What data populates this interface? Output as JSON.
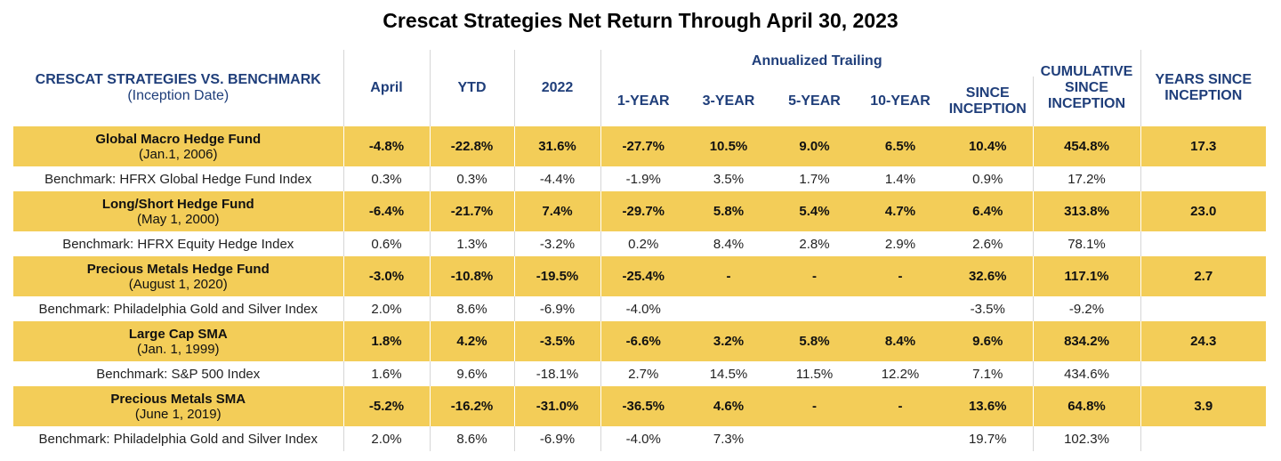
{
  "title": "Crescat Strategies Net Return Through April 30, 2023",
  "header": {
    "strategy_label": "CRESCAT STRATEGIES VS. BENCHMARK",
    "strategy_sublabel": "(Inception Date)",
    "april": "April",
    "ytd": "YTD",
    "y2022": "2022",
    "annualized_trailing": "Annualized Trailing",
    "one_year": "1-YEAR",
    "three_year": "3-YEAR",
    "five_year": "5-YEAR",
    "ten_year": "10-YEAR",
    "since_inception": "SINCE INCEPTION",
    "cumulative_since_inception": "CUMULATIVE SINCE INCEPTION",
    "years_since_inception": "YEARS SINCE INCEPTION"
  },
  "rows": [
    {
      "kind": "fund",
      "name": "Global Macro Hedge Fund",
      "date": "(Jan.1, 2006)",
      "cells": [
        "-4.8%",
        "-22.8%",
        "31.6%",
        "-27.7%",
        "10.5%",
        "9.0%",
        "6.5%",
        "10.4%",
        "454.8%",
        "17.3"
      ]
    },
    {
      "kind": "bench",
      "name": "Benchmark: HFRX Global Hedge Fund Index",
      "cells": [
        "0.3%",
        "0.3%",
        "-4.4%",
        "-1.9%",
        "3.5%",
        "1.7%",
        "1.4%",
        "0.9%",
        "17.2%",
        ""
      ]
    },
    {
      "kind": "fund",
      "name": "Long/Short Hedge Fund",
      "date": "(May 1, 2000)",
      "cells": [
        "-6.4%",
        "-21.7%",
        "7.4%",
        "-29.7%",
        "5.8%",
        "5.4%",
        "4.7%",
        "6.4%",
        "313.8%",
        "23.0"
      ]
    },
    {
      "kind": "bench",
      "name": "Benchmark: HFRX Equity Hedge Index",
      "cells": [
        "0.6%",
        "1.3%",
        "-3.2%",
        "0.2%",
        "8.4%",
        "2.8%",
        "2.9%",
        "2.6%",
        "78.1%",
        ""
      ]
    },
    {
      "kind": "fund",
      "name": "Precious Metals Hedge Fund",
      "date": "(August 1, 2020)",
      "cells": [
        "-3.0%",
        "-10.8%",
        "-19.5%",
        "-25.4%",
        "-",
        "-",
        "-",
        "32.6%",
        "117.1%",
        "2.7"
      ]
    },
    {
      "kind": "bench",
      "name": "Benchmark: Philadelphia Gold and Silver Index",
      "cells": [
        "2.0%",
        "8.6%",
        "-6.9%",
        "-4.0%",
        "",
        "",
        "",
        "-3.5%",
        "-9.2%",
        ""
      ]
    },
    {
      "kind": "fund",
      "name": "Large Cap SMA",
      "date": "(Jan. 1, 1999)",
      "cells": [
        "1.8%",
        "4.2%",
        "-3.5%",
        "-6.6%",
        "3.2%",
        "5.8%",
        "8.4%",
        "9.6%",
        "834.2%",
        "24.3"
      ]
    },
    {
      "kind": "bench",
      "name": "Benchmark: S&P 500 Index",
      "cells": [
        "1.6%",
        "9.6%",
        "-18.1%",
        "2.7%",
        "14.5%",
        "11.5%",
        "12.2%",
        "7.1%",
        "434.6%",
        ""
      ]
    },
    {
      "kind": "fund",
      "name": "Precious Metals SMA",
      "date": "(June 1, 2019)",
      "cells": [
        "-5.2%",
        "-16.2%",
        "-31.0%",
        "-36.5%",
        "4.6%",
        "-",
        "-",
        "13.6%",
        "64.8%",
        "3.9"
      ]
    },
    {
      "kind": "bench",
      "name": "Benchmark: Philadelphia Gold and Silver Index",
      "cells": [
        "2.0%",
        "8.6%",
        "-6.9%",
        "-4.0%",
        "7.3%",
        "",
        "",
        "19.7%",
        "102.3%",
        ""
      ]
    }
  ],
  "colors": {
    "fund_row_bg": "#f3cd58",
    "header_text": "#1f3e7a"
  }
}
